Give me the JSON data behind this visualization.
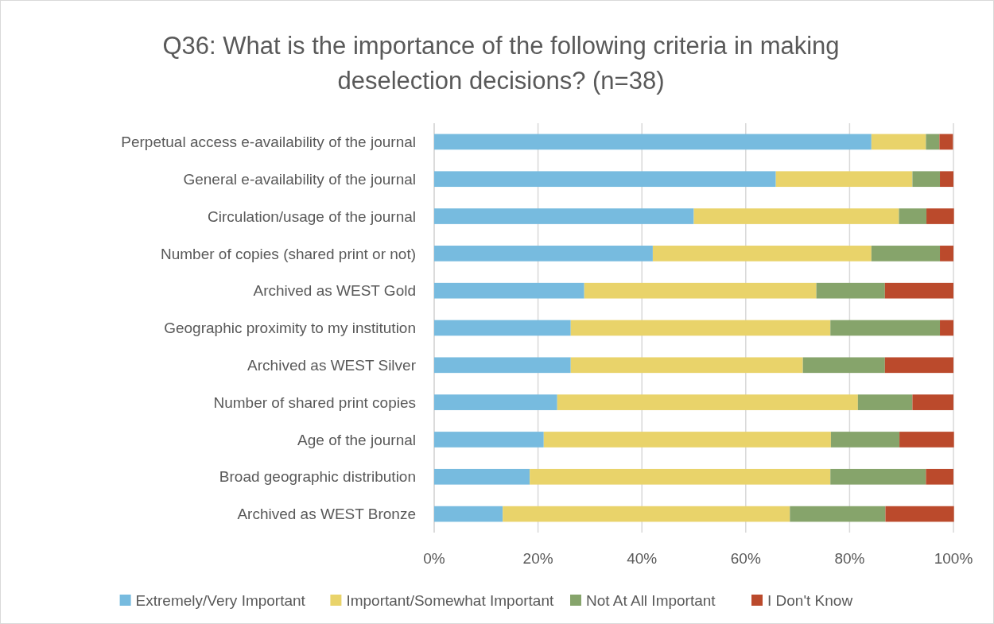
{
  "chart_data": {
    "type": "bar",
    "orientation": "horizontal",
    "stacked": true,
    "title": "Q36: What is the importance of the following criteria in making deselection decisions? (n=38)",
    "categories": [
      "Perpetual access e-availability of the journal",
      "General e-availability of the journal",
      "Circulation/usage of the journal",
      "Number of copies (shared print or not)",
      "Archived as WEST Gold",
      "Geographic proximity to my institution",
      "Archived as WEST Silver",
      "Number of shared print copies",
      "Age of the journal",
      "Broad geographic distribution",
      "Archived as WEST Bronze"
    ],
    "series": [
      {
        "name": "Extremely/Very Important",
        "color": "#77bbdf",
        "values": [
          84.2,
          65.8,
          50,
          42.1,
          28.9,
          26.3,
          26.3,
          23.7,
          21.1,
          18.4,
          13.2
        ]
      },
      {
        "name": "Important/Somewhat Important",
        "color": "#e9d36a",
        "values": [
          10.5,
          26.3,
          39.5,
          42.1,
          44.7,
          50,
          44.7,
          57.9,
          55.3,
          57.9,
          55.3
        ]
      },
      {
        "name": "Not At All Important",
        "color": "#86a46b",
        "values": [
          2.6,
          5.3,
          5.3,
          13.2,
          13.2,
          21.1,
          15.8,
          10.5,
          13.2,
          18.4,
          18.4
        ]
      },
      {
        "name": "I Don't Know",
        "color": "#bb4a2c",
        "values": [
          2.6,
          2.6,
          5.3,
          2.6,
          13.2,
          2.6,
          13.2,
          7.9,
          10.5,
          5.3,
          13.2
        ]
      }
    ],
    "xlim": [
      0,
      100
    ],
    "xticks": [
      {
        "value": 0,
        "label": "0%"
      },
      {
        "value": 20,
        "label": "20%"
      },
      {
        "value": 40,
        "label": "40%"
      },
      {
        "value": 60,
        "label": "60%"
      },
      {
        "value": 80,
        "label": "80%"
      },
      {
        "value": 100,
        "label": "100%"
      }
    ],
    "grid": "x",
    "legend": "bottom"
  }
}
